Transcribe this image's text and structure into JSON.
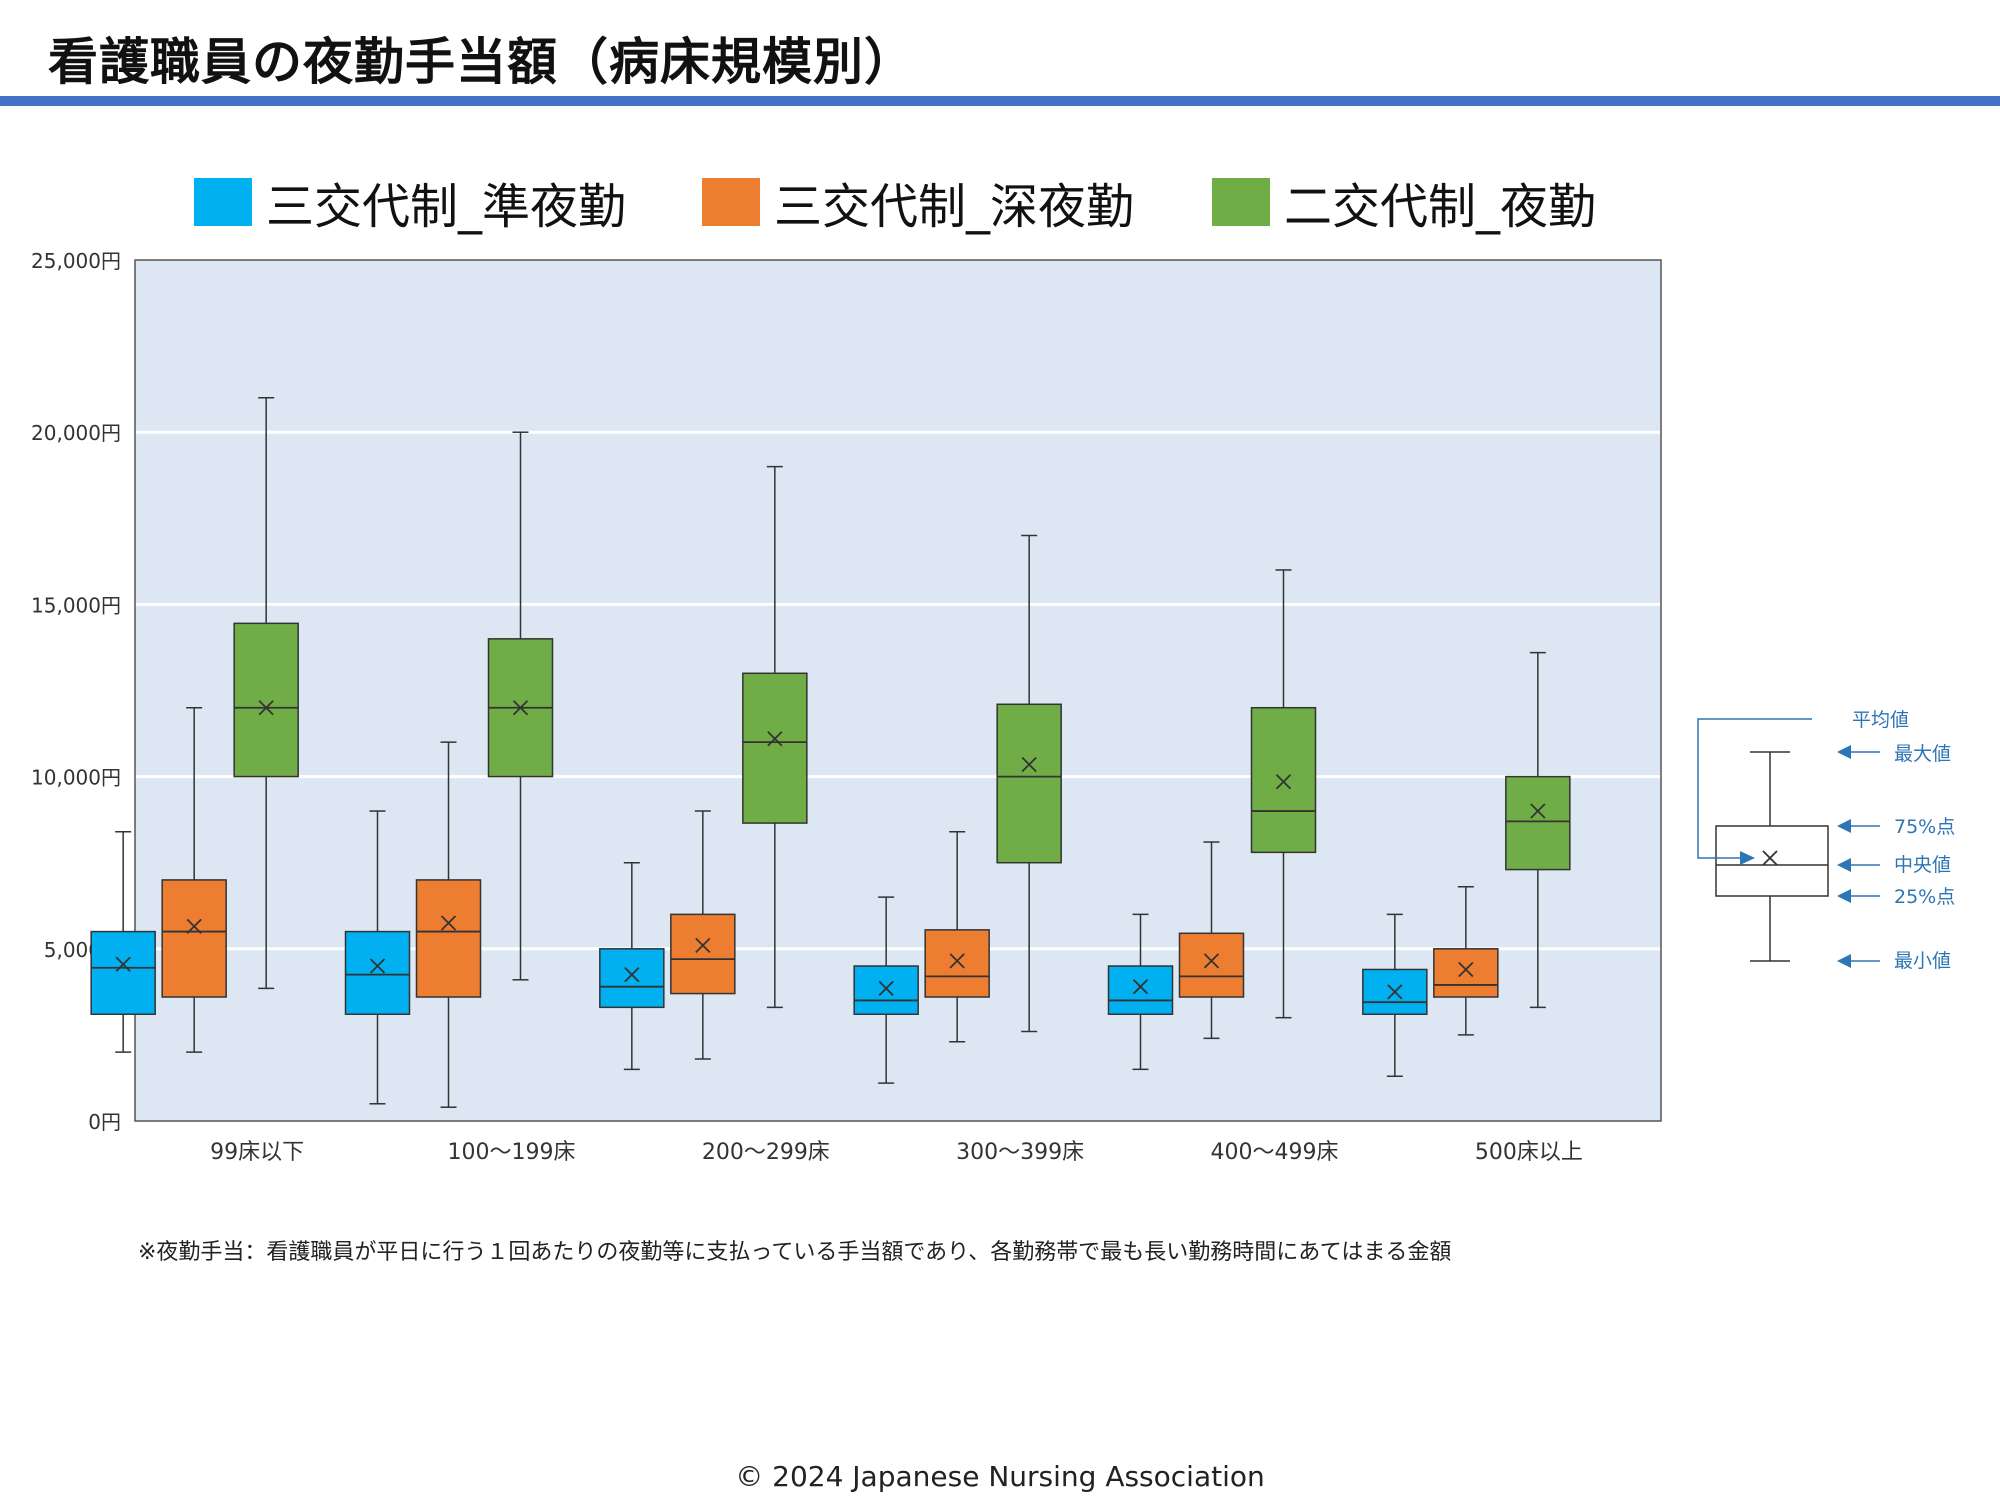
{
  "title": "看護職員の夜勤手当額（病床規模別）",
  "legend": [
    {
      "label": "三交代制_準夜勤",
      "color": "#00b0f0"
    },
    {
      "label": "三交代制_深夜勤",
      "color": "#ed7d31"
    },
    {
      "label": "二交代制_夜勤",
      "color": "#70ad47"
    }
  ],
  "footnote": "※夜勤手当：看護職員が平日に行う１回あたりの夜勤等に支払っている手当額であり、各勤務帯で最も長い勤務時間にあてはまる金額",
  "copyright": "© 2024 Japanese Nursing Association",
  "explainer": {
    "mean": "平均値",
    "max": "最大値",
    "q3": "75%点",
    "median": "中央値",
    "q1": "25%点",
    "min": "最小値"
  },
  "chart_data": {
    "type": "box",
    "title": "看護職員の夜勤手当額（病床規模別）",
    "y_unit": "円",
    "ylim": [
      0,
      25000
    ],
    "y_ticks": [
      0,
      5000,
      10000,
      15000,
      20000,
      25000
    ],
    "y_tick_labels": [
      "0円",
      "5,000円",
      "10,000円",
      "15,000円",
      "20,000円",
      "25,000円"
    ],
    "grid": true,
    "legend_position": "top",
    "plot_background": "#dce7f3",
    "categories": [
      "99床以下",
      "100～199床",
      "200～299床",
      "300～399床",
      "400～499床",
      "500床以上"
    ],
    "series": [
      {
        "name": "三交代制_準夜勤",
        "color": "#00b0f0",
        "boxes": [
          {
            "min": 2000,
            "q1": 3100,
            "median": 4450,
            "q3": 5500,
            "max": 8400,
            "mean": 4550
          },
          {
            "min": 500,
            "q1": 3100,
            "median": 4250,
            "q3": 5500,
            "max": 9000,
            "mean": 4500
          },
          {
            "min": 1500,
            "q1": 3300,
            "median": 3900,
            "q3": 5000,
            "max": 7500,
            "mean": 4250
          },
          {
            "min": 1100,
            "q1": 3100,
            "median": 3500,
            "q3": 4500,
            "max": 6500,
            "mean": 3850
          },
          {
            "min": 1500,
            "q1": 3100,
            "median": 3500,
            "q3": 4500,
            "max": 6000,
            "mean": 3900
          },
          {
            "min": 1300,
            "q1": 3100,
            "median": 3450,
            "q3": 4400,
            "max": 6000,
            "mean": 3750
          }
        ]
      },
      {
        "name": "三交代制_深夜勤",
        "color": "#ed7d31",
        "boxes": [
          {
            "min": 2000,
            "q1": 3600,
            "median": 5500,
            "q3": 7000,
            "max": 12000,
            "mean": 5650
          },
          {
            "min": 400,
            "q1": 3600,
            "median": 5500,
            "q3": 7000,
            "max": 11000,
            "mean": 5750
          },
          {
            "min": 1800,
            "q1": 3700,
            "median": 4700,
            "q3": 6000,
            "max": 9000,
            "mean": 5100
          },
          {
            "min": 2300,
            "q1": 3600,
            "median": 4200,
            "q3": 5550,
            "max": 8400,
            "mean": 4650
          },
          {
            "min": 2400,
            "q1": 3600,
            "median": 4200,
            "q3": 5450,
            "max": 8100,
            "mean": 4650
          },
          {
            "min": 2500,
            "q1": 3600,
            "median": 3950,
            "q3": 5000,
            "max": 6800,
            "mean": 4400
          }
        ]
      },
      {
        "name": "二交代制_夜勤",
        "color": "#70ad47",
        "boxes": [
          {
            "min": 3850,
            "q1": 10000,
            "median": 12000,
            "q3": 14450,
            "max": 21000,
            "mean": 12000
          },
          {
            "min": 4100,
            "q1": 10000,
            "median": 12000,
            "q3": 14000,
            "max": 20000,
            "mean": 12000
          },
          {
            "min": 3300,
            "q1": 8650,
            "median": 11000,
            "q3": 13000,
            "max": 19000,
            "mean": 11100
          },
          {
            "min": 2600,
            "q1": 7500,
            "median": 10000,
            "q3": 12100,
            "max": 17000,
            "mean": 10350
          },
          {
            "min": 3000,
            "q1": 7800,
            "median": 9000,
            "q3": 12000,
            "max": 16000,
            "mean": 9850
          },
          {
            "min": 3300,
            "q1": 7300,
            "median": 8700,
            "q3": 10000,
            "max": 13600,
            "mean": 9000
          }
        ]
      }
    ]
  }
}
